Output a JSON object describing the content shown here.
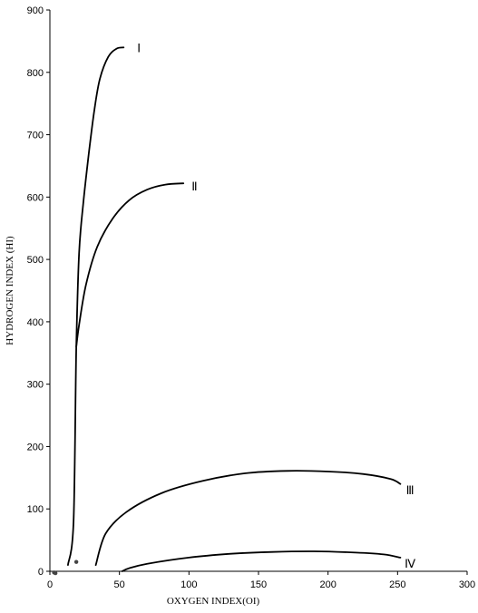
{
  "chart_data": {
    "type": "line",
    "title": "",
    "xlabel": "OXYGEN INDEX(OI)",
    "ylabel": "HYDROGEN INDEX (HI)",
    "xlim": [
      0,
      300
    ],
    "ylim": [
      0,
      900
    ],
    "xticks": [
      0,
      50,
      100,
      150,
      200,
      250,
      300
    ],
    "yticks": [
      0,
      100,
      200,
      300,
      400,
      500,
      600,
      700,
      800,
      900
    ],
    "grid": false,
    "legend": "none",
    "series": [
      {
        "label": "Ⅰ",
        "points": [
          [
            13,
            10
          ],
          [
            17,
            80
          ],
          [
            19,
            360
          ],
          [
            21,
            510
          ],
          [
            24,
            590
          ],
          [
            28,
            670
          ],
          [
            32,
            740
          ],
          [
            36,
            790
          ],
          [
            42,
            825
          ],
          [
            48,
            838
          ],
          [
            53,
            840
          ]
        ],
        "label_at": [
          64,
          840
        ]
      },
      {
        "label": "Ⅱ",
        "points": [
          [
            19,
            360
          ],
          [
            21,
            395
          ],
          [
            26,
            460
          ],
          [
            34,
            520
          ],
          [
            45,
            565
          ],
          [
            57,
            595
          ],
          [
            70,
            612
          ],
          [
            83,
            620
          ],
          [
            96,
            622
          ]
        ],
        "label_at": [
          104,
          618
        ]
      },
      {
        "label": "Ⅲ",
        "points": [
          [
            33,
            10
          ],
          [
            40,
            60
          ],
          [
            55,
            95
          ],
          [
            80,
            125
          ],
          [
            110,
            145
          ],
          [
            140,
            157
          ],
          [
            170,
            161
          ],
          [
            200,
            160
          ],
          [
            225,
            156
          ],
          [
            245,
            148
          ],
          [
            252,
            140
          ]
        ],
        "label_at": [
          259,
          131
        ]
      },
      {
        "label": "Ⅳ",
        "points": [
          [
            52,
            0
          ],
          [
            57,
            5
          ],
          [
            70,
            12
          ],
          [
            100,
            22
          ],
          [
            130,
            28
          ],
          [
            160,
            31
          ],
          [
            190,
            32
          ],
          [
            220,
            30
          ],
          [
            240,
            27
          ],
          [
            252,
            22
          ]
        ],
        "label_at": [
          259,
          13
        ]
      }
    ],
    "markers": [
      [
        3,
        -2
      ],
      [
        4,
        -3
      ],
      [
        19,
        15
      ]
    ]
  }
}
